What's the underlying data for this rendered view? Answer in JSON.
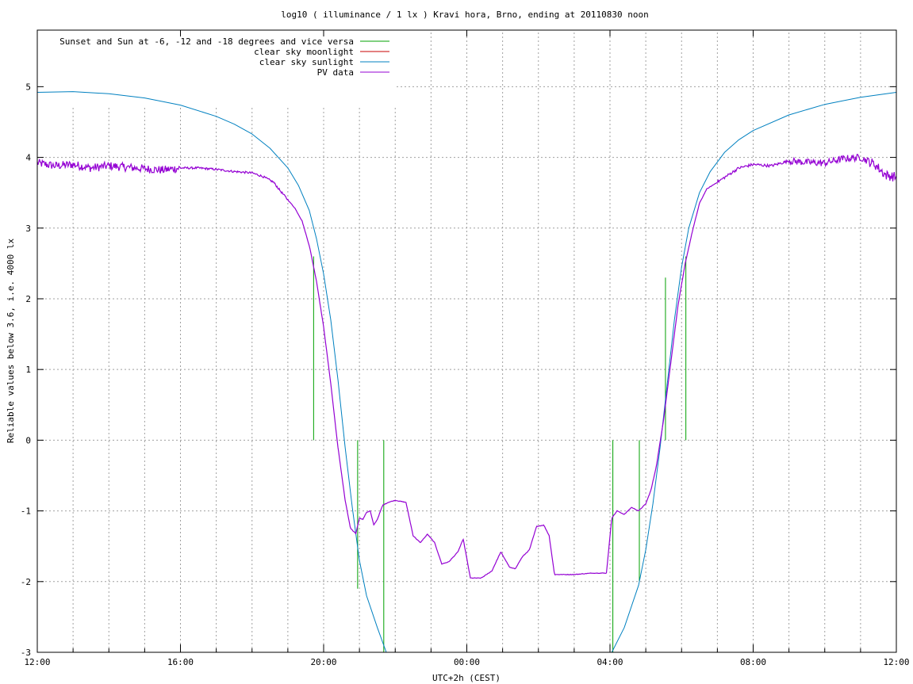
{
  "chart_data": {
    "type": "line",
    "title": "log10 ( illuminance / 1 lx ) Kravi hora, Brno, ending at 20110830 noon",
    "xlabel": "UTC+2h (CEST)",
    "ylabel": "Reliable values below 3.6, i.e. 4000 lx",
    "x_unit": "hours since 12:00 (UTC+2h)",
    "xlim": [
      0,
      24
    ],
    "ylim": [
      -3,
      5.8
    ],
    "x_ticks": [
      {
        "value": 0,
        "label": "12:00"
      },
      {
        "value": 4,
        "label": "16:00"
      },
      {
        "value": 8,
        "label": "20:00"
      },
      {
        "value": 12,
        "label": "00:00"
      },
      {
        "value": 16,
        "label": "04:00"
      },
      {
        "value": 20,
        "label": "08:00"
      },
      {
        "value": 24,
        "label": "12:00"
      }
    ],
    "x_minor_step": 1,
    "y_ticks": [
      -3,
      -2,
      -1,
      0,
      1,
      2,
      3,
      4,
      5
    ],
    "grid": true,
    "legend_position": "top-left",
    "series": [
      {
        "name": "Sunset and Sun at -6, -12 and -18 degrees and vice versa",
        "color": "#00a000",
        "style": "vertical-markers",
        "markers": [
          {
            "x": 7.72,
            "y_from": 0,
            "y_to": 2.6
          },
          {
            "x": 8.95,
            "y_from": -2.1,
            "y_to": 0
          },
          {
            "x": 9.68,
            "y_from": -3,
            "y_to": 0
          },
          {
            "x": 16.08,
            "y_from": -3,
            "y_to": 0
          },
          {
            "x": 16.82,
            "y_from": -2.0,
            "y_to": 0
          },
          {
            "x": 17.55,
            "y_from": 0,
            "y_to": 2.3
          },
          {
            "x": 18.12,
            "y_from": 0,
            "y_to": 2.6
          }
        ]
      },
      {
        "name": "clear sky moonlight",
        "color": "#c80000",
        "values": []
      },
      {
        "name": "clear sky sunlight",
        "color": "#0080c0",
        "values": [
          [
            0,
            4.92
          ],
          [
            1,
            4.93
          ],
          [
            2,
            4.9
          ],
          [
            3,
            4.84
          ],
          [
            4,
            4.74
          ],
          [
            5,
            4.58
          ],
          [
            5.5,
            4.47
          ],
          [
            6,
            4.33
          ],
          [
            6.5,
            4.13
          ],
          [
            7,
            3.85
          ],
          [
            7.3,
            3.6
          ],
          [
            7.6,
            3.25
          ],
          [
            7.8,
            2.85
          ],
          [
            8,
            2.35
          ],
          [
            8.2,
            1.7
          ],
          [
            8.4,
            0.85
          ],
          [
            8.6,
            -0.1
          ],
          [
            8.8,
            -0.95
          ],
          [
            9,
            -1.7
          ],
          [
            9.2,
            -2.2
          ],
          [
            9.5,
            -2.65
          ],
          [
            9.75,
            -3
          ]
        ],
        "values_morning": [
          [
            16.05,
            -3
          ],
          [
            16.4,
            -2.65
          ],
          [
            16.8,
            -2.05
          ],
          [
            17.0,
            -1.55
          ],
          [
            17.2,
            -0.9
          ],
          [
            17.4,
            -0.1
          ],
          [
            17.6,
            0.8
          ],
          [
            17.8,
            1.7
          ],
          [
            18.0,
            2.45
          ],
          [
            18.2,
            3.0
          ],
          [
            18.5,
            3.5
          ],
          [
            18.8,
            3.8
          ],
          [
            19.2,
            4.07
          ],
          [
            19.6,
            4.25
          ],
          [
            20,
            4.38
          ],
          [
            21,
            4.6
          ],
          [
            22,
            4.75
          ],
          [
            23,
            4.85
          ],
          [
            24,
            4.92
          ]
        ]
      },
      {
        "name": "PV data",
        "color": "#9400d3",
        "values": [
          [
            0,
            3.92
          ],
          [
            0.5,
            3.88
          ],
          [
            1,
            3.9
          ],
          [
            1.5,
            3.85
          ],
          [
            2,
            3.88
          ],
          [
            2.5,
            3.86
          ],
          [
            3,
            3.84
          ],
          [
            3.5,
            3.82
          ],
          [
            4,
            3.85
          ],
          [
            4.5,
            3.85
          ],
          [
            5,
            3.83
          ],
          [
            5.5,
            3.8
          ],
          [
            6,
            3.78
          ],
          [
            6.3,
            3.73
          ],
          [
            6.6,
            3.65
          ],
          [
            6.8,
            3.52
          ],
          [
            7,
            3.4
          ],
          [
            7.2,
            3.28
          ],
          [
            7.4,
            3.1
          ],
          [
            7.6,
            2.75
          ],
          [
            7.8,
            2.25
          ],
          [
            8,
            1.6
          ],
          [
            8.2,
            0.8
          ],
          [
            8.4,
            -0.1
          ],
          [
            8.6,
            -0.85
          ],
          [
            8.75,
            -1.25
          ],
          [
            8.9,
            -1.32
          ],
          [
            9.0,
            -1.1
          ],
          [
            9.1,
            -1.12
          ],
          [
            9.2,
            -1.02
          ],
          [
            9.3,
            -1.0
          ],
          [
            9.4,
            -1.2
          ],
          [
            9.5,
            -1.12
          ],
          [
            9.65,
            -0.92
          ],
          [
            9.8,
            -0.88
          ],
          [
            10.0,
            -0.85
          ],
          [
            10.3,
            -0.88
          ],
          [
            10.5,
            -1.35
          ],
          [
            10.7,
            -1.45
          ],
          [
            10.9,
            -1.33
          ],
          [
            11.1,
            -1.45
          ],
          [
            11.3,
            -1.75
          ],
          [
            11.5,
            -1.72
          ],
          [
            11.75,
            -1.58
          ],
          [
            11.9,
            -1.4
          ],
          [
            12.1,
            -1.95
          ],
          [
            12.4,
            -1.95
          ],
          [
            12.7,
            -1.85
          ],
          [
            12.95,
            -1.58
          ],
          [
            13.2,
            -1.8
          ],
          [
            13.35,
            -1.82
          ],
          [
            13.55,
            -1.65
          ],
          [
            13.75,
            -1.55
          ],
          [
            13.95,
            -1.22
          ],
          [
            14.15,
            -1.2
          ],
          [
            14.3,
            -1.35
          ],
          [
            14.45,
            -1.9
          ],
          [
            15,
            -1.9
          ],
          [
            15.5,
            -1.88
          ],
          [
            15.9,
            -1.88
          ],
          [
            16.05,
            -1.1
          ],
          [
            16.2,
            -1.0
          ],
          [
            16.4,
            -1.05
          ],
          [
            16.6,
            -0.95
          ],
          [
            16.8,
            -1.0
          ],
          [
            17.0,
            -0.9
          ],
          [
            17.15,
            -0.7
          ],
          [
            17.3,
            -0.35
          ],
          [
            17.5,
            0.3
          ],
          [
            17.7,
            1.1
          ],
          [
            17.9,
            1.9
          ],
          [
            18.1,
            2.5
          ],
          [
            18.3,
            2.95
          ],
          [
            18.5,
            3.35
          ],
          [
            18.7,
            3.55
          ],
          [
            19.0,
            3.65
          ],
          [
            19.3,
            3.75
          ],
          [
            19.6,
            3.85
          ],
          [
            20,
            3.9
          ],
          [
            20.5,
            3.88
          ],
          [
            21,
            3.95
          ],
          [
            21.5,
            3.93
          ],
          [
            22,
            3.92
          ],
          [
            22.5,
            3.98
          ],
          [
            23,
            4.0
          ],
          [
            23.4,
            3.9
          ],
          [
            23.7,
            3.75
          ],
          [
            24,
            3.72
          ]
        ]
      }
    ]
  }
}
